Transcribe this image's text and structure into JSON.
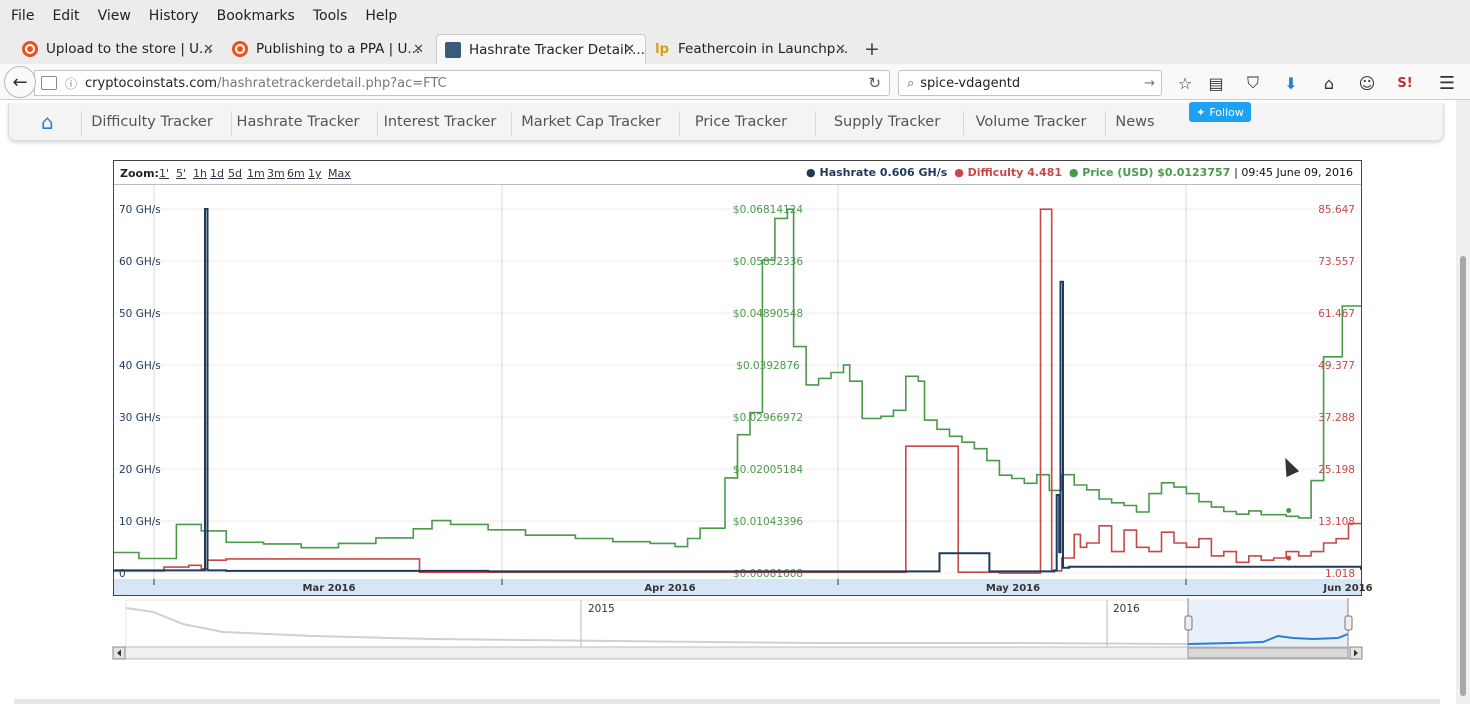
{
  "menubar": {
    "items": [
      "File",
      "Edit",
      "View",
      "History",
      "Bookmarks",
      "Tools",
      "Help"
    ]
  },
  "tabs": [
    {
      "title": "Upload to the store | U...",
      "icon": "ubuntu-icon"
    },
    {
      "title": "Publishing to a PPA | U...",
      "icon": "ubuntu-icon"
    },
    {
      "title": "Hashrate Tracker Detail:...",
      "icon": "chart-icon",
      "active": true
    },
    {
      "title": "Feathercoin in Launchp...",
      "icon": "launchpad-icon"
    }
  ],
  "navbar": {
    "url_host": "cryptocoinstats.com",
    "url_path": "/hashratetrackerdetail.php?ac=FTC",
    "search_value": "spice-vdagentd"
  },
  "sitenav": {
    "links": [
      "Difficulty Tracker",
      "Hashrate Tracker",
      "Interest Tracker",
      "Market Cap Tracker",
      "Price Tracker",
      "Supply Tracker",
      "Volume Tracker",
      "News"
    ],
    "follow_label": "Follow"
  },
  "chart": {
    "zoom_label": "Zoom:",
    "zoom_options": [
      "1'",
      "5'",
      "1h",
      "1d",
      "5d",
      "1m",
      "3m",
      "6m",
      "1y",
      "Max"
    ],
    "legend": {
      "hashrate_label": "Hashrate",
      "hashrate_value": "0.606 GH/s",
      "difficulty_label": "Difficulty",
      "difficulty_value": "4.481",
      "price_label": "Price (USD)",
      "price_value": "$0.0123757",
      "timestamp": "| 09:45 June 09, 2016"
    },
    "colors": {
      "hashrate": "#1f3a5a",
      "difficulty": "#c84848",
      "price": "#4a9a4a",
      "navigator": "#2a7fd4"
    },
    "navigator_years": [
      "2015",
      "2016"
    ]
  },
  "chart_data": {
    "type": "line",
    "x_ticks": [
      "Mar 2016",
      "Apr 2016",
      "May 2016",
      "Jun 2016"
    ],
    "y_left_ticks": [
      "0",
      "10 GH/s",
      "20 GH/s",
      "30 GH/s",
      "40 GH/s",
      "50 GH/s",
      "60 GH/s",
      "70 GH/s"
    ],
    "y_price_ticks": [
      "$0.00081608",
      "$0.01043396",
      "$0.02005184",
      "$0.02966972",
      "$0.0392876",
      "$0.04890548",
      "$0.05852336",
      "$0.06814124"
    ],
    "y_right_ticks": [
      "1.018",
      "13.108",
      "25.198",
      "37.288",
      "49.377",
      "61.467",
      "73.557",
      "85.647"
    ],
    "x_range": [
      0,
      100
    ],
    "series": [
      {
        "name": "Hashrate",
        "unit": "GH/s",
        "axis": "left",
        "points": [
          [
            0,
            0.5
          ],
          [
            7,
            0.5
          ],
          [
            7.3,
            70
          ],
          [
            7.5,
            0.5
          ],
          [
            9,
            0.4
          ],
          [
            30,
            0.3
          ],
          [
            50,
            0.3
          ],
          [
            66,
            0.3
          ],
          [
            66.2,
            3.8
          ],
          [
            70,
            3.8
          ],
          [
            70.2,
            0.3
          ],
          [
            75.4,
            0.5
          ],
          [
            75.6,
            15
          ],
          [
            75.8,
            4
          ],
          [
            75.9,
            56
          ],
          [
            76.1,
            1
          ],
          [
            76.6,
            1.2
          ],
          [
            100,
            0.6
          ]
        ]
      },
      {
        "name": "Price (USD)",
        "unit": "USD",
        "axis": "price",
        "points": [
          [
            0,
            0.0046
          ],
          [
            2,
            0.0035
          ],
          [
            5,
            0.0098
          ],
          [
            7,
            0.0086
          ],
          [
            9,
            0.0065
          ],
          [
            12,
            0.0062
          ],
          [
            15,
            0.0055
          ],
          [
            18,
            0.0063
          ],
          [
            21,
            0.0073
          ],
          [
            24,
            0.009
          ],
          [
            25.5,
            0.0105
          ],
          [
            27,
            0.0098
          ],
          [
            30,
            0.0088
          ],
          [
            33,
            0.0078
          ],
          [
            37,
            0.0072
          ],
          [
            40,
            0.0066
          ],
          [
            43,
            0.0063
          ],
          [
            45,
            0.0057
          ],
          [
            46,
            0.0072
          ],
          [
            47,
            0.0091
          ],
          [
            49,
            0.0184
          ],
          [
            50,
            0.0264
          ],
          [
            51,
            0.0305
          ],
          [
            52,
            0.0587
          ],
          [
            53,
            0.0664
          ],
          [
            54,
            0.0681
          ],
          [
            54.5,
            0.0427
          ],
          [
            55.5,
            0.0356
          ],
          [
            56.5,
            0.0368
          ],
          [
            57.5,
            0.0379
          ],
          [
            58.5,
            0.0393
          ],
          [
            59,
            0.0363
          ],
          [
            60,
            0.0294
          ],
          [
            61.5,
            0.0298
          ],
          [
            62.5,
            0.0309
          ],
          [
            63.5,
            0.0372
          ],
          [
            64.5,
            0.0363
          ],
          [
            65,
            0.0291
          ],
          [
            66,
            0.0274
          ],
          [
            67,
            0.0261
          ],
          [
            68,
            0.025
          ],
          [
            69,
            0.0238
          ],
          [
            70,
            0.0216
          ],
          [
            71,
            0.0189
          ],
          [
            72,
            0.0183
          ],
          [
            73,
            0.0174
          ],
          [
            74,
            0.019
          ],
          [
            75,
            0.0161
          ],
          [
            76,
            0.019
          ],
          [
            77,
            0.0171
          ],
          [
            78,
            0.0162
          ],
          [
            79,
            0.0145
          ],
          [
            80,
            0.0138
          ],
          [
            81,
            0.0133
          ],
          [
            82,
            0.0121
          ],
          [
            83,
            0.0155
          ],
          [
            84,
            0.0175
          ],
          [
            85,
            0.0167
          ],
          [
            86,
            0.0155
          ],
          [
            87,
            0.014
          ],
          [
            88,
            0.013
          ],
          [
            89,
            0.0122
          ],
          [
            90,
            0.0117
          ],
          [
            91,
            0.0123
          ],
          [
            92,
            0.0116
          ],
          [
            94,
            0.0113
          ],
          [
            95,
            0.011
          ],
          [
            96,
            0.0179
          ],
          [
            97,
            0.0408
          ],
          [
            98.5,
            0.0502
          ],
          [
            100,
            0.0502
          ]
        ]
      },
      {
        "name": "Difficulty",
        "unit": "",
        "axis": "right",
        "points": [
          [
            0,
            1.5
          ],
          [
            3,
            1.5
          ],
          [
            4,
            2.4
          ],
          [
            6,
            2.8
          ],
          [
            7,
            2.0
          ],
          [
            7.5,
            4.0
          ],
          [
            9,
            4.3
          ],
          [
            24,
            4.3
          ],
          [
            24.5,
            1.2
          ],
          [
            63,
            1.2
          ],
          [
            63.5,
            30.5
          ],
          [
            67.5,
            30.5
          ],
          [
            67.7,
            1.2
          ],
          [
            70,
            1.2
          ],
          [
            71,
            1.0
          ],
          [
            74,
            1.0
          ],
          [
            74.3,
            85.6
          ],
          [
            75,
            85.6
          ],
          [
            75.2,
            1.5
          ],
          [
            76,
            4.5
          ],
          [
            77,
            10
          ],
          [
            77.5,
            7
          ],
          [
            78,
            8
          ],
          [
            79,
            12
          ],
          [
            80,
            6
          ],
          [
            81,
            11
          ],
          [
            82,
            7
          ],
          [
            83,
            6
          ],
          [
            84,
            10.5
          ],
          [
            85,
            8
          ],
          [
            86,
            7
          ],
          [
            87,
            9
          ],
          [
            88,
            5
          ],
          [
            89,
            6
          ],
          [
            90,
            3.5
          ],
          [
            91,
            5
          ],
          [
            92,
            4
          ],
          [
            93,
            4.5
          ],
          [
            94,
            6
          ],
          [
            95,
            5
          ],
          [
            96,
            6
          ],
          [
            97,
            8
          ],
          [
            98,
            9
          ],
          [
            99,
            12.5
          ],
          [
            100,
            12.5
          ]
        ]
      }
    ]
  }
}
